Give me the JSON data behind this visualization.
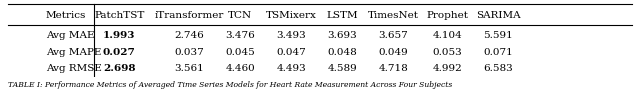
{
  "headers": [
    "Metrics",
    "PatchTST",
    "iTransformer",
    "TCN",
    "TSMixerx",
    "LSTM",
    "TimesNet",
    "Prophet",
    "SARIMA"
  ],
  "rows": [
    [
      "Avg MAE",
      "1.993",
      "2.746",
      "3.476",
      "3.493",
      "3.693",
      "3.657",
      "4.104",
      "5.591"
    ],
    [
      "Avg MAPE",
      "0.027",
      "0.037",
      "0.045",
      "0.047",
      "0.048",
      "0.049",
      "0.053",
      "0.071"
    ],
    [
      "Avg RMSE",
      "2.698",
      "3.561",
      "4.460",
      "4.493",
      "4.589",
      "4.718",
      "4.992",
      "6.583"
    ]
  ],
  "bold_col": 1,
  "caption": "TABLE I: Performance Metrics of Averaged Time Series Models for Heart Rate Measurement Across Four Subjects",
  "bg_color": "#ffffff",
  "header_line_color": "#000000",
  "text_color": "#000000",
  "figsize": [
    6.4,
    0.9
  ],
  "dpi": 100
}
